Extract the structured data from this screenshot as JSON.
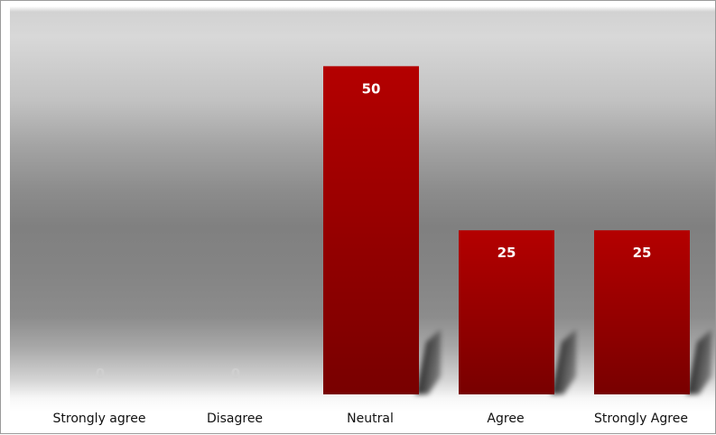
{
  "chart_data": {
    "type": "bar",
    "categories": [
      "Strongly agree",
      "Disagree",
      "Neutral",
      "Agree",
      "Strongly Agree"
    ],
    "values": [
      0,
      0,
      50,
      25,
      25
    ],
    "data_labels": [
      "0",
      "0",
      "50",
      "25",
      "25"
    ],
    "ylim": [
      0,
      55
    ],
    "grid": false,
    "legend": "none",
    "colors": {
      "bar": "#b00000",
      "bar_dark": "#7a0000",
      "label": "#ffffff",
      "zero_label": "#cfcfcf"
    }
  }
}
